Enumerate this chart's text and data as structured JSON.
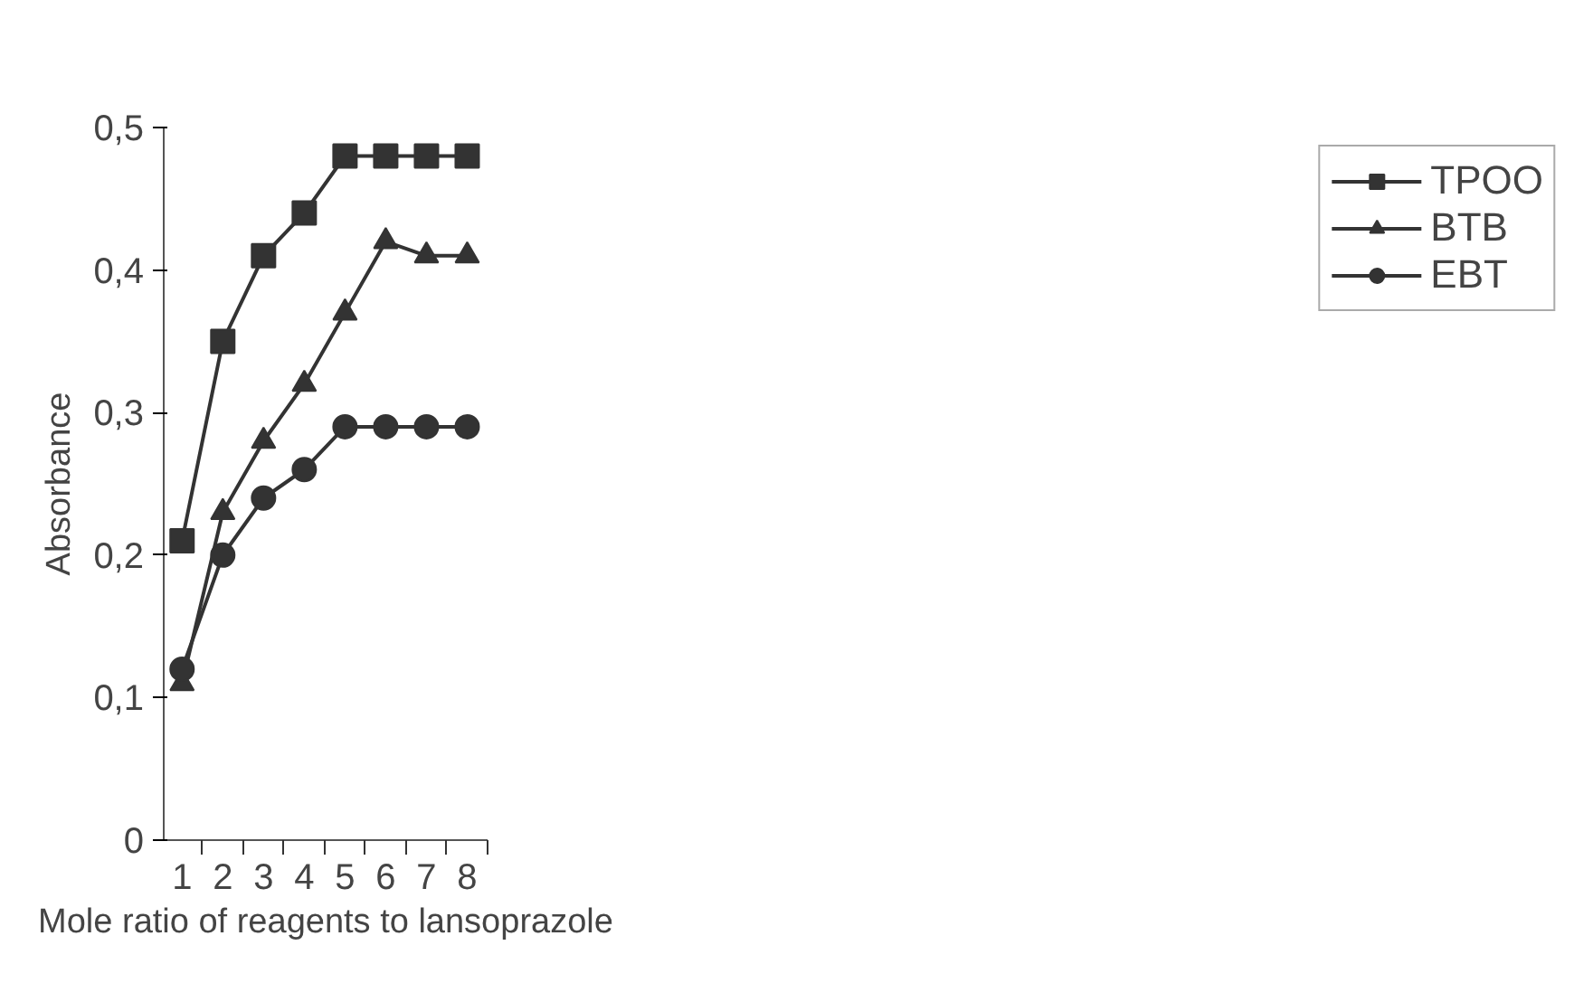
{
  "chart_data": {
    "type": "line",
    "xlabel": "Mole ratio of reagents to lansoprazole",
    "ylabel": "Absorbance",
    "categories": [
      "1",
      "2",
      "3",
      "4",
      "5",
      "6",
      "7",
      "8"
    ],
    "series": [
      {
        "name": "TPOO",
        "color": "#333333",
        "marker": "square",
        "values": [
          0.21,
          0.35,
          0.41,
          0.44,
          0.48,
          0.48,
          0.48,
          0.48
        ]
      },
      {
        "name": "BTB",
        "color": "#333333",
        "marker": "triangle",
        "values": [
          0.11,
          0.23,
          0.28,
          0.32,
          0.37,
          0.42,
          0.41,
          0.41
        ]
      },
      {
        "name": "EBT",
        "color": "#333333",
        "marker": "circle",
        "values": [
          0.12,
          0.2,
          0.24,
          0.26,
          0.29,
          0.29,
          0.29,
          0.29
        ]
      }
    ],
    "ylim": [
      0,
      0.5
    ],
    "yticks": [
      {
        "value": 0,
        "label": "0"
      },
      {
        "value": 0.1,
        "label": "0,1"
      },
      {
        "value": 0.2,
        "label": "0,2"
      },
      {
        "value": 0.3,
        "label": "0,3"
      },
      {
        "value": 0.4,
        "label": "0,4"
      },
      {
        "value": 0.5,
        "label": "0,5"
      }
    ],
    "grid": false,
    "legend": "top right",
    "line_style": "solid"
  }
}
